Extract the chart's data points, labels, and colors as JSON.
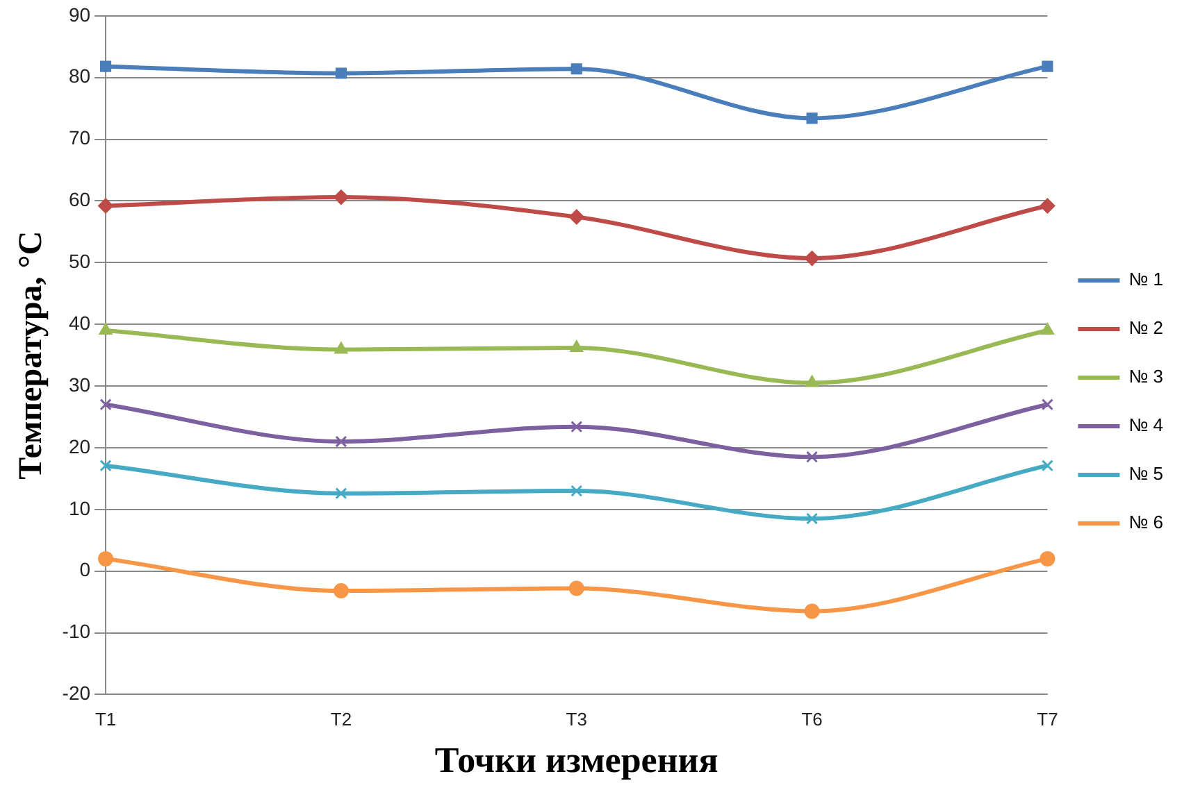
{
  "chart_data": {
    "type": "line",
    "xlabel": "Точки измерения",
    "ylabel": "Температура, °C",
    "categories": [
      "T1",
      "T2",
      "T3",
      "T6",
      "T7"
    ],
    "series": [
      {
        "name": "№ 1",
        "color": "#4a7ebb",
        "marker": "square",
        "values": [
          81.8,
          80.7,
          81.4,
          73.4,
          81.8
        ]
      },
      {
        "name": "№ 2",
        "color": "#be4b48",
        "marker": "diamond",
        "values": [
          59.2,
          60.6,
          57.4,
          50.7,
          59.2
        ]
      },
      {
        "name": "№ 3",
        "color": "#98b954",
        "marker": "triangle",
        "values": [
          39,
          35.9,
          36.2,
          30.5,
          39
        ]
      },
      {
        "name": "№ 4",
        "color": "#7d60a0",
        "marker": "cross",
        "values": [
          27,
          21,
          23.4,
          18.5,
          27
        ]
      },
      {
        "name": "№ 5",
        "color": "#46aac5",
        "marker": "cross",
        "values": [
          17.1,
          12.6,
          13,
          8.5,
          17.1
        ]
      },
      {
        "name": "№ 6",
        "color": "#f79646",
        "marker": "circle",
        "values": [
          2,
          -3.2,
          -2.8,
          -6.5,
          2
        ]
      }
    ],
    "ylim": [
      -20,
      90
    ],
    "yticks": [
      -20,
      -10,
      0,
      10,
      20,
      30,
      40,
      50,
      60,
      70,
      80,
      90
    ],
    "grid": "y",
    "legend": "right",
    "line_style": "solid"
  }
}
